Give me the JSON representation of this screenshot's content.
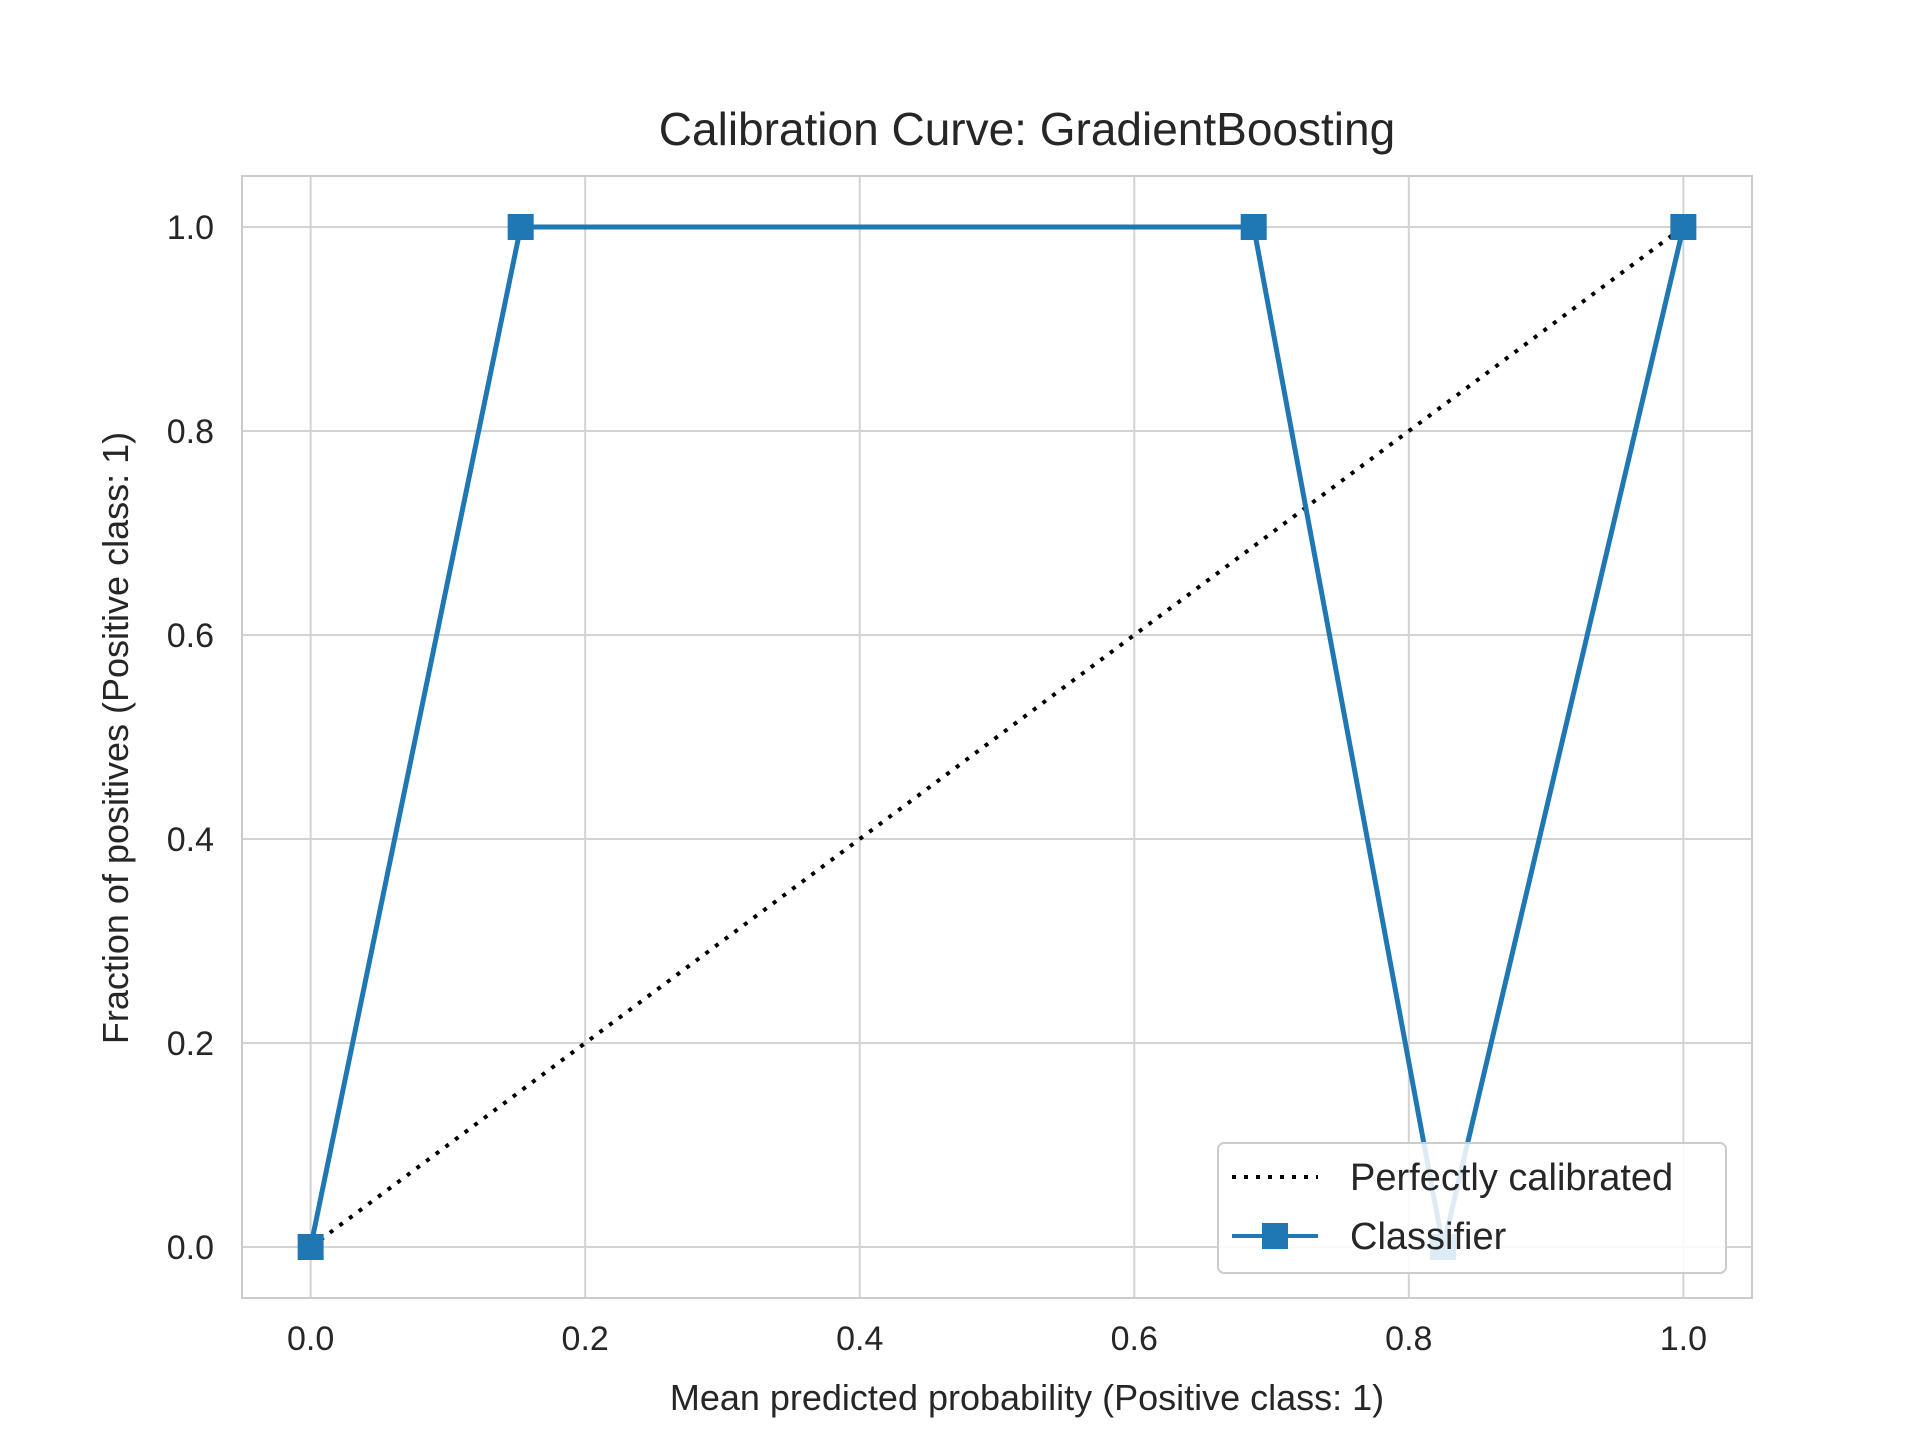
{
  "chart_data": {
    "type": "line",
    "title": "Calibration Curve: GradientBoosting",
    "xlabel": "Mean predicted probability (Positive class: 1)",
    "ylabel": "Fraction of positives (Positive class: 1)",
    "xlim": [
      -0.05,
      1.05
    ],
    "ylim": [
      -0.05,
      1.05
    ],
    "xticks": [
      "0.0",
      "0.2",
      "0.4",
      "0.6",
      "0.8",
      "1.0"
    ],
    "yticks": [
      "0.0",
      "0.2",
      "0.4",
      "0.6",
      "0.8",
      "1.0"
    ],
    "grid": true,
    "legend_position": "bottom-right",
    "series": [
      {
        "name": "Perfectly calibrated",
        "style": "dotted",
        "color": "#000000",
        "x": [
          0,
          1
        ],
        "y": [
          0,
          1
        ]
      },
      {
        "name": "Classifier",
        "style": "solid",
        "marker": "square",
        "color": "#1f77b4",
        "x": [
          0.0,
          0.153,
          0.687,
          0.825,
          1.0
        ],
        "y": [
          0.0,
          1.0,
          1.0,
          0.0,
          1.0
        ]
      }
    ]
  }
}
